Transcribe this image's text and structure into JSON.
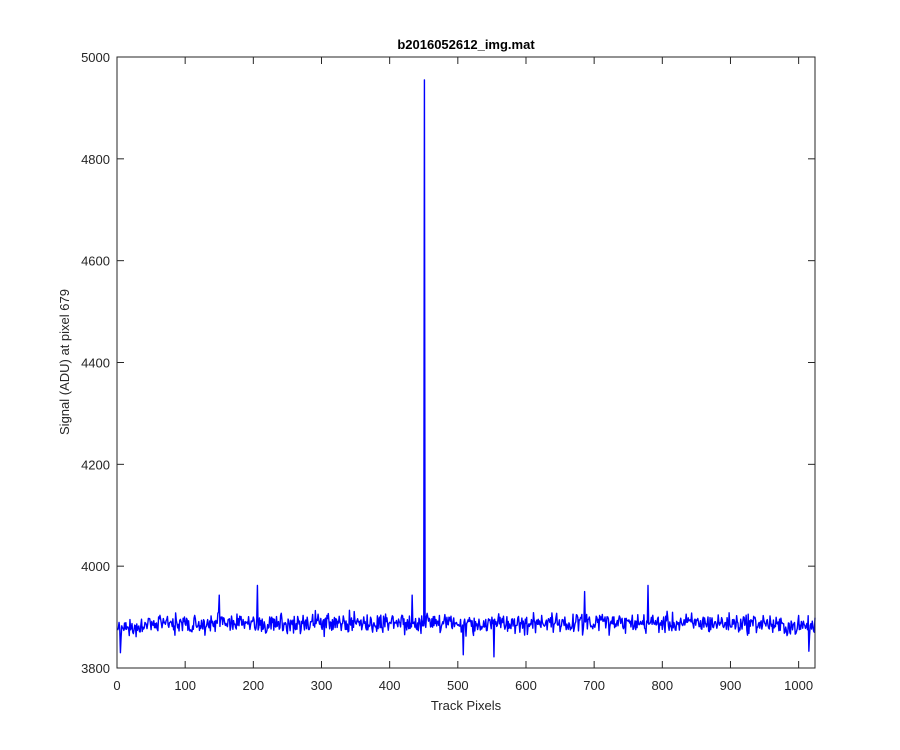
{
  "chart_data": {
    "type": "line",
    "title": "b2016052612_img.mat",
    "xlabel": "Track Pixels",
    "ylabel": "Signal (ADU) at pixel 679",
    "xlim": [
      0,
      1024
    ],
    "ylim": [
      3800,
      5000
    ],
    "xticks": [
      "0",
      "100",
      "200",
      "300",
      "400",
      "500",
      "600",
      "700",
      "800",
      "900",
      "1000"
    ],
    "yticks": [
      "3800",
      "4000",
      "4200",
      "4400",
      "4600",
      "4800",
      "5000"
    ],
    "grid": false,
    "legend": "none",
    "series": [
      {
        "color": "#0000ff",
        "baseline": 3888,
        "noise_amplitude": 20,
        "spikes": [
          {
            "x": 451,
            "y": 4955
          },
          {
            "x": 206,
            "y": 3962
          },
          {
            "x": 686,
            "y": 3950
          },
          {
            "x": 779,
            "y": 3962
          },
          {
            "x": 150,
            "y": 3943
          },
          {
            "x": 433,
            "y": 3943
          },
          {
            "x": 508,
            "y": 3826
          },
          {
            "x": 553,
            "y": 3822
          },
          {
            "x": 5,
            "y": 3830
          },
          {
            "x": 1015,
            "y": 3833
          }
        ]
      }
    ]
  }
}
